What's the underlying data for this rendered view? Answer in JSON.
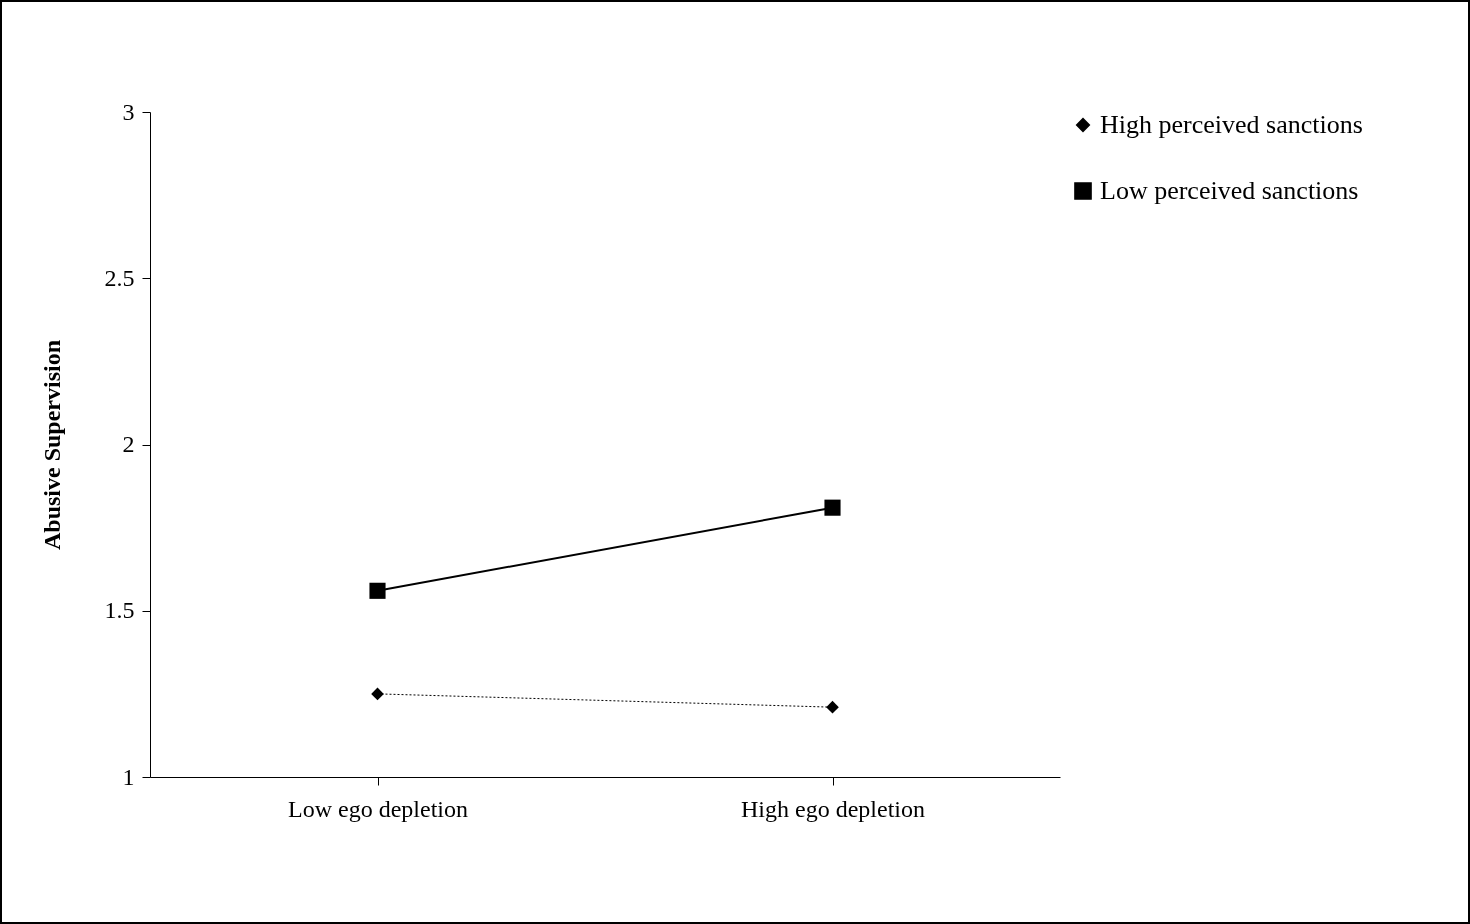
{
  "chart_data": {
    "type": "line",
    "ylabel": "Abusive Supervision",
    "categories": [
      "Low ego depletion",
      "High ego depletion"
    ],
    "series": [
      {
        "name": "High perceived sanctions",
        "color": "#000000",
        "values": [
          1.25,
          1.21
        ],
        "marker": "diamond",
        "line_style": "dotted"
      },
      {
        "name": "Low perceived sanctions",
        "color": "#000000",
        "values": [
          1.56,
          1.81
        ],
        "marker": "square",
        "line_style": "solid"
      }
    ],
    "ylim": [
      1,
      3
    ],
    "yticks": [
      1,
      1.5,
      2,
      2.5,
      3
    ],
    "grid": false,
    "legend": "right"
  }
}
